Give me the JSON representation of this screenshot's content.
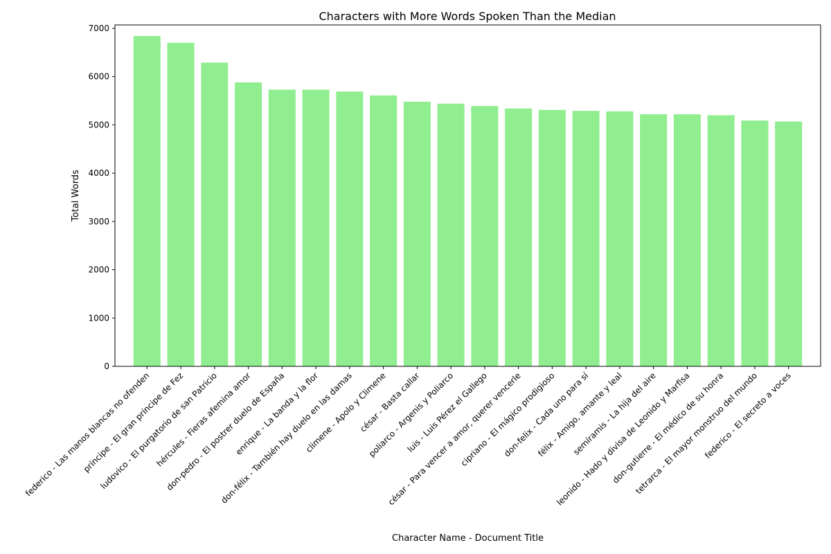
{
  "chart_data": {
    "type": "bar",
    "title": "Characters with More Words Spoken Than the Median",
    "xlabel": "Character Name - Document Title",
    "ylabel": "Total Words",
    "ylim": [
      0,
      7000
    ],
    "yticks": [
      0,
      1000,
      2000,
      3000,
      4000,
      5000,
      6000,
      7000
    ],
    "bar_color": "#90ee90",
    "grid": false,
    "categories": [
      "federico - Las manos blancas no ofenden",
      "príncipe - El gran príncipe de Fez",
      "ludovico - El purgatorio de san Patricio",
      "hércules - Fieras afemina amor",
      "don-pedro - El postrer duelo de España",
      "enrique - La banda y la flor",
      "don-félix - También hay duelo en las damas",
      "climene - Apolo y Climene",
      "césar - Basta callar",
      "poliarco - Argenis y Poliarco",
      "luis - Luis Pérez el Gallego",
      "césar - Para vencer a amor, querer vencerle",
      "cipriano - El mágico prodigioso",
      "don-felix - Cada uno para sí",
      "félix - Amigo, amante y leal",
      "semíramis - La hija del aire",
      "leonido - Hado y divisa de Leonido y Marfisa",
      "don-gutierre - El médico de su honra",
      "tetrarca - El mayor monstruo del mundo",
      "federico - El secreto a voces"
    ],
    "values": [
      6840,
      6700,
      6290,
      5880,
      5730,
      5730,
      5690,
      5610,
      5480,
      5440,
      5390,
      5340,
      5310,
      5290,
      5280,
      5220,
      5220,
      5200,
      5090,
      5070
    ]
  }
}
